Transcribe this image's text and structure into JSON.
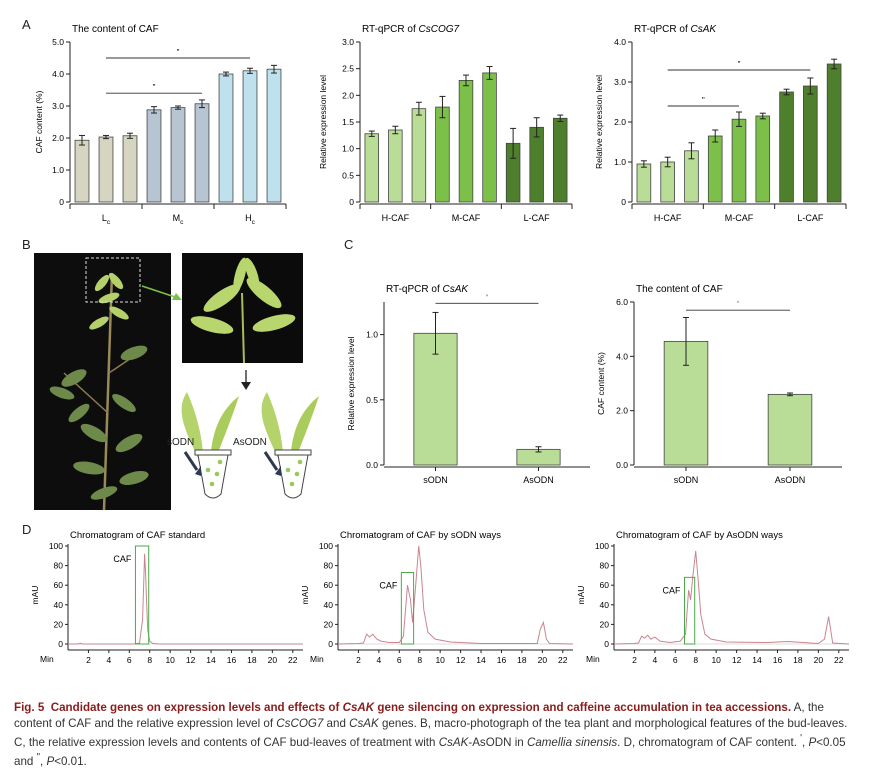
{
  "panels": {
    "a": "A",
    "b": "B",
    "c": "C",
    "d": "D"
  },
  "colors": {
    "light_green": "#b9dd96",
    "mid_green": "#7cc04a",
    "dark_green": "#4e7f2d",
    "beige": "#d5d5c2",
    "blue_gray": "#b7c5d2",
    "light_blue": "#bfe1ee",
    "chrom_line": "#c9858f",
    "box_green": "#4aa84a"
  },
  "chart_data": [
    {
      "id": "caf_content_A",
      "type": "bar",
      "title": "The content of CAF",
      "ylabel": "CAF content (%)",
      "ylim": [
        0,
        5.0
      ],
      "yticks": [
        "0",
        "1.0",
        "2.0",
        "3.0",
        "4.0",
        "5.0"
      ],
      "groups": [
        {
          "label": "L",
          "sub": "c"
        },
        {
          "label": "M",
          "sub": "c"
        },
        {
          "label": "H",
          "sub": "c"
        }
      ],
      "values": [
        1.93,
        2.03,
        2.07,
        2.88,
        2.95,
        3.07,
        4.0,
        4.1,
        4.15
      ],
      "errors": [
        0.15,
        0.05,
        0.08,
        0.1,
        0.05,
        0.12,
        0.06,
        0.08,
        0.12
      ],
      "sig": [
        "\"",
        "\""
      ]
    },
    {
      "id": "cscog7",
      "type": "bar",
      "title_prefix": "RT-qPCR of ",
      "title_gene": "CsCOG7",
      "ylabel": "Relative expression level",
      "ylim": [
        0,
        3.0
      ],
      "yticks": [
        "0",
        "0.5",
        "1.0",
        "1.5",
        "2.0",
        "2.5",
        "3.0"
      ],
      "groups": [
        "H-CAF",
        "M-CAF",
        "L-CAF"
      ],
      "values": [
        1.28,
        1.35,
        1.75,
        1.78,
        2.28,
        2.42,
        1.1,
        1.4,
        1.57
      ],
      "errors": [
        0.05,
        0.07,
        0.12,
        0.2,
        0.1,
        0.12,
        0.28,
        0.18,
        0.06
      ]
    },
    {
      "id": "csak_A",
      "type": "bar",
      "title_prefix": "RT-qPCR of ",
      "title_gene": "CsAK",
      "ylabel": "Relative expression level",
      "ylim": [
        0,
        4.0
      ],
      "yticks": [
        "0",
        "1.0",
        "2.0",
        "3.0",
        "4.0"
      ],
      "groups": [
        "H-CAF",
        "M-CAF",
        "L-CAF"
      ],
      "values": [
        0.95,
        1.0,
        1.28,
        1.65,
        2.07,
        2.15,
        2.75,
        2.9,
        3.45
      ],
      "errors": [
        0.08,
        0.12,
        0.2,
        0.15,
        0.18,
        0.07,
        0.07,
        0.2,
        0.12
      ],
      "sig": [
        "\"",
        "\""
      ]
    },
    {
      "id": "csak_C",
      "type": "bar",
      "title_prefix": "RT-qPCR of ",
      "title_gene": "CsAK",
      "ylabel": "Relative expression level",
      "ylim": [
        0,
        1.25
      ],
      "yticks": [
        "0.0",
        "0.5",
        "1.0"
      ],
      "categories": [
        "sODN",
        "AsODN"
      ],
      "values": [
        1.01,
        0.12
      ],
      "errors": [
        0.16,
        0.02
      ],
      "sig": [
        "'"
      ]
    },
    {
      "id": "caf_content_C",
      "type": "bar",
      "title": "The content of CAF",
      "ylabel": "CAF content (%)",
      "ylim": [
        0,
        6.0
      ],
      "yticks": [
        "0.0",
        "2.0",
        "4.0",
        "6.0"
      ],
      "categories": [
        "sODN",
        "AsODN"
      ],
      "values": [
        4.55,
        2.6
      ],
      "errors": [
        0.88,
        0.05
      ],
      "sig": [
        "'"
      ]
    },
    {
      "id": "chrom_std",
      "type": "line",
      "title": "Chromatogram of CAF standard",
      "ylabel": "mAU",
      "xlabel": "Min",
      "ylim": [
        0,
        100
      ],
      "xlim": [
        0,
        23
      ],
      "yticks": [
        "0",
        "20",
        "40",
        "60",
        "80",
        "100"
      ],
      "xticks": [
        "2",
        "4",
        "6",
        "8",
        "10",
        "12",
        "14",
        "16",
        "18",
        "20",
        "22"
      ],
      "peak_label": "CAF",
      "x": [
        0,
        1,
        1.2,
        1.4,
        2,
        6.5,
        7.0,
        7.3,
        7.5,
        7.6,
        7.7,
        7.8,
        8.0,
        8.3,
        9,
        23
      ],
      "y": [
        0,
        0,
        0.8,
        0,
        0,
        0,
        1,
        25,
        92,
        70,
        40,
        15,
        3,
        0.5,
        0,
        0
      ]
    },
    {
      "id": "chrom_sodn",
      "type": "line",
      "title": "Chromatogram of CAF by sODN ways",
      "ylabel": "mAU",
      "xlabel": "Min",
      "ylim": [
        0,
        100
      ],
      "xlim": [
        0,
        23
      ],
      "yticks": [
        "0",
        "20",
        "40",
        "60",
        "80",
        "100"
      ],
      "xticks": [
        "2",
        "4",
        "6",
        "8",
        "10",
        "12",
        "14",
        "16",
        "18",
        "20",
        "22"
      ],
      "peak_label": "CAF",
      "x": [
        0,
        2,
        2.5,
        2.8,
        3.1,
        3.4,
        3.8,
        4.2,
        5,
        6,
        6.4,
        6.8,
        7.1,
        7.3,
        7.6,
        7.9,
        8.1,
        8.4,
        8.8,
        9.5,
        11,
        14,
        19.5,
        19.8,
        20.1,
        20.4,
        20.7,
        23
      ],
      "y": [
        0,
        0.5,
        1,
        10,
        7,
        10,
        5,
        3,
        1.5,
        1.5,
        8,
        60,
        45,
        22,
        60,
        100,
        80,
        35,
        12,
        5,
        2,
        0.5,
        0.5,
        15,
        22,
        5,
        0.5,
        0
      ]
    },
    {
      "id": "chrom_asodn",
      "type": "line",
      "title": "Chromatogram of CAF by AsODN ways",
      "ylabel": "mAU",
      "xlabel": "Min",
      "ylim": [
        0,
        100
      ],
      "xlim": [
        0,
        23
      ],
      "yticks": [
        "0",
        "20",
        "40",
        "60",
        "80",
        "100"
      ],
      "xticks": [
        "2",
        "4",
        "6",
        "8",
        "10",
        "12",
        "14",
        "16",
        "18",
        "20",
        "22"
      ],
      "peak_label": "CAF",
      "x": [
        0,
        2,
        2.4,
        2.7,
        3.0,
        3.3,
        3.6,
        4.0,
        4.5,
        5.5,
        6.5,
        7.0,
        7.3,
        7.5,
        7.7,
        8.0,
        8.2,
        8.5,
        8.9,
        9.5,
        11,
        15,
        17,
        20,
        20.6,
        21.0,
        21.4,
        23
      ],
      "y": [
        0,
        0.5,
        1,
        8,
        6,
        9,
        5,
        7,
        3,
        1.5,
        3,
        10,
        55,
        45,
        68,
        95,
        70,
        30,
        10,
        5,
        2,
        1.5,
        2.5,
        0.5,
        5,
        28,
        1,
        0
      ]
    }
  ],
  "photo_b": {
    "tube_left": "sODN",
    "tube_right": "AsODN"
  },
  "caption": {
    "label": "Fig. 5",
    "head_1": "Candidate genes on expression levels and effects of ",
    "head_gene": "CsAK",
    "head_2": " gene silencing on expression and caffeine accumulation in tea accessions.",
    "t1": " A, the content of CAF and the relative expression level of ",
    "g1": "CsCOG7",
    "t2": " and ",
    "g2": "CsAK",
    "t3": " genes.  B, macro-photograph of the tea plant and morphological features of the bud-leaves.  C, the relative expression levels and contents of CAF bud-leaves of treatment with ",
    "g3": "CsAK",
    "t4": "-AsODN in ",
    "species": "Camellia sinensis",
    "t5": ".  D, chromatogram of CAF content.  ",
    "sig1_mark": "'",
    "p_letter": "P",
    "sig1_text": "<0.05 and ",
    "sig2_mark": "\"",
    "sig2_text": "<0.01."
  }
}
